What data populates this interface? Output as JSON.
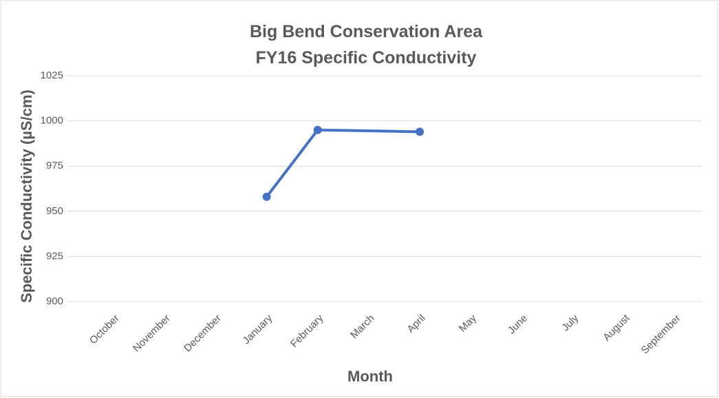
{
  "chart_data": {
    "type": "line",
    "title": [
      "Big Bend Conservation Area",
      "FY16 Specific Conductivity"
    ],
    "xlabel": "Month",
    "ylabel": "Specific Conductivity (µS/cm)",
    "categories": [
      "October",
      "November",
      "December",
      "January",
      "February",
      "March",
      "April",
      "May",
      "June",
      "July",
      "August",
      "September"
    ],
    "series": [
      {
        "name": "Specific Conductivity",
        "color": "#4472c4",
        "values": [
          null,
          null,
          null,
          958,
          995,
          null,
          994,
          null,
          null,
          null,
          null,
          null
        ]
      }
    ],
    "connect_nulls": true,
    "ylim": [
      900,
      1025
    ],
    "yticks": [
      900,
      925,
      950,
      975,
      1000,
      1025
    ],
    "grid": true
  }
}
